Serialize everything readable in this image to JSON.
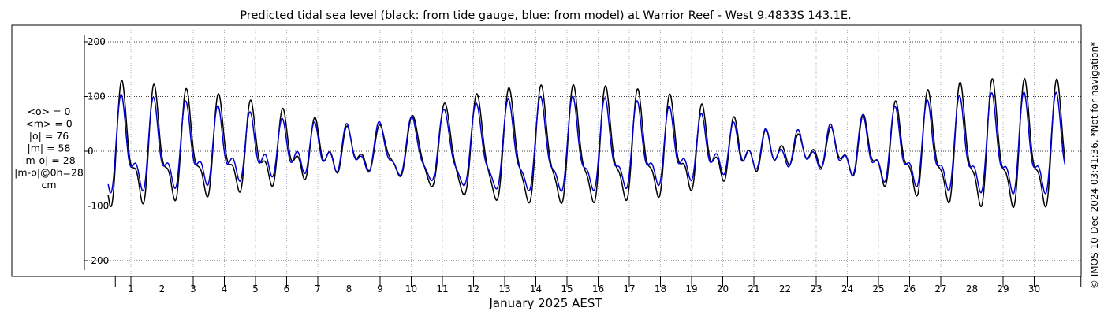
{
  "chart_data": {
    "type": "line",
    "title": "Predicted tidal sea level (black: from tide gauge, blue: from model) at Warrior Reef - West 9.4833S 143.1E.",
    "xlabel": "January 2025 AEST",
    "ylabel": "",
    "x_ticks": [
      "1",
      "2",
      "3",
      "4",
      "5",
      "6",
      "7",
      "8",
      "9",
      "10",
      "11",
      "12",
      "13",
      "14",
      "15",
      "16",
      "17",
      "18",
      "19",
      "20",
      "21",
      "22",
      "23",
      "24",
      "25",
      "26",
      "27",
      "28",
      "29",
      "30"
    ],
    "y_ticks": [
      "200",
      "100",
      "0",
      "-100",
      "-200"
    ],
    "y_tick_values": [
      200,
      100,
      0,
      -100,
      -200
    ],
    "xlim_days": [
      0.08,
      31.0
    ],
    "ylim": [
      -225,
      210
    ],
    "grid": true,
    "series": [
      {
        "color": "#000000",
        "diurnal_amplitude": [
          95,
          92,
          88,
          83,
          75,
          64,
          50,
          35,
          25,
          35,
          55,
          75,
          88,
          95,
          98,
          97,
          94,
          88,
          80,
          65,
          45,
          25,
          10,
          18,
          35,
          55,
          75,
          90,
          98,
          100,
          98
        ],
        "semidiurnal_amplitude": [
          45,
          42,
          38,
          35,
          33,
          32,
          30,
          28,
          22,
          15,
          12,
          15,
          20,
          25,
          28,
          30,
          32,
          33,
          34,
          33,
          30,
          25,
          20,
          18,
          22,
          28,
          32,
          35,
          38,
          40,
          40
        ]
      },
      {
        "color": "#0000cc",
        "diurnal_amplitude": [
          70,
          68,
          65,
          60,
          52,
          42,
          32,
          28,
          30,
          38,
          50,
          62,
          70,
          74,
          76,
          75,
          72,
          66,
          58,
          46,
          33,
          22,
          18,
          24,
          36,
          50,
          60,
          68,
          72,
          75,
          74
        ],
        "semidiurnal_amplitude": [
          40,
          38,
          35,
          33,
          32,
          30,
          28,
          26,
          22,
          18,
          15,
          16,
          20,
          24,
          27,
          29,
          30,
          31,
          31,
          30,
          27,
          23,
          20,
          20,
          24,
          28,
          31,
          33,
          35,
          37,
          37
        ]
      }
    ],
    "stats": {
      "lines": [
        "<o> = 0",
        "<m> = 0",
        "|o| = 76",
        "|m| = 58",
        "|m-o| = 28",
        "|m-o|@0h=28",
        "cm"
      ]
    },
    "credit": "© IMOS 10-Dec-2024 03:41:36. *Not for navigation*"
  }
}
